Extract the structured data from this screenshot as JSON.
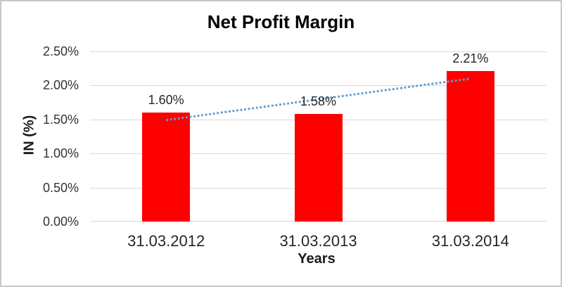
{
  "chart_data": {
    "type": "bar",
    "title": "Net Profit Margin",
    "xlabel": "Years",
    "ylabel": "IN (%)",
    "categories": [
      "31.03.2012",
      "31.03.2013",
      "31.03.2014"
    ],
    "series": [
      {
        "name": "Net Profit Margin",
        "values": [
          1.6,
          1.58,
          2.21
        ],
        "color": "#ff0000"
      }
    ],
    "data_labels": [
      "1.60%",
      "1.58%",
      "2.21%"
    ],
    "ylim": [
      0,
      2.5
    ],
    "ytick_labels": [
      "2.50%",
      "2.00%",
      "1.50%",
      "1.00%",
      "0.50%",
      "0.00%"
    ],
    "ytick_values": [
      2.5,
      2.0,
      1.5,
      1.0,
      0.5,
      0.0
    ],
    "grid": true,
    "gridline_color": "#d9d9d9",
    "legend": "none",
    "trendline": {
      "type": "linear",
      "style": "dotted",
      "color": "#5b9bd5",
      "start_category_index": 0,
      "start_value": 1.49,
      "end_category_index": 2,
      "end_value": 2.1
    },
    "frame_border_color": "#c9c9c9",
    "background_color": "#ffffff"
  }
}
